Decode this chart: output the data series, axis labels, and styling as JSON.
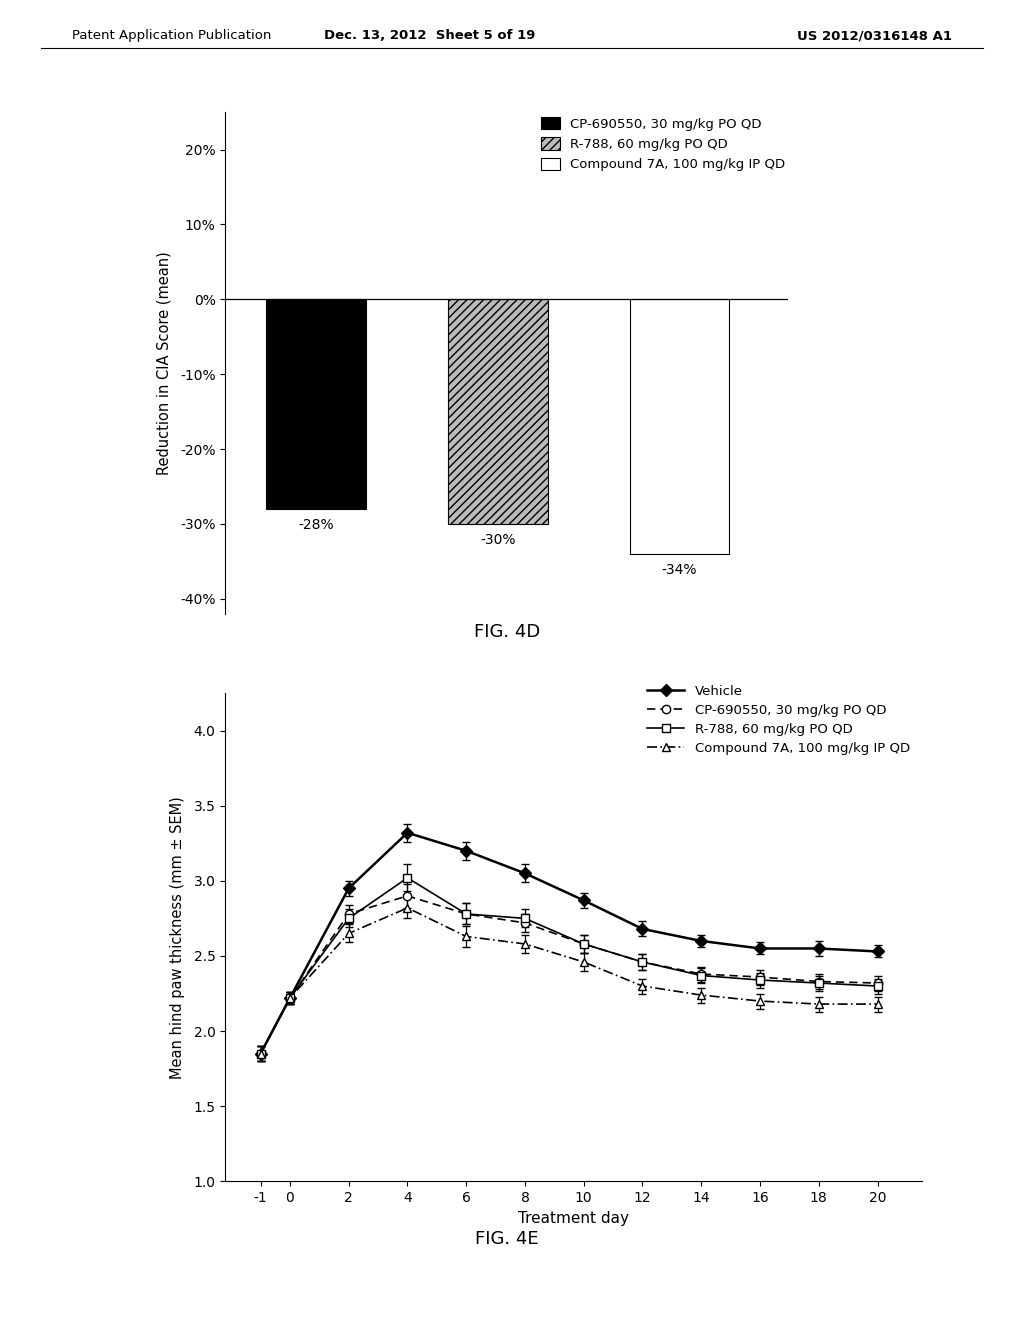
{
  "header_left": "Patent Application Publication",
  "header_center": "Dec. 13, 2012  Sheet 5 of 19",
  "header_right": "US 2012/0316148 A1",
  "fig4d": {
    "title": "FIG. 4D",
    "ylabel": "Reduction in CIA Score (mean)",
    "bar_values": [
      -28,
      -30,
      -34
    ],
    "bar_labels": [
      "-28%",
      "-30%",
      "-34%"
    ],
    "bar_colors": [
      "#000000",
      "#bbbbbb",
      "#ffffff"
    ],
    "bar_hatches": [
      null,
      "////",
      null
    ],
    "ylim": [
      -42,
      25
    ],
    "yticks": [
      -40,
      -30,
      -20,
      -10,
      0,
      10,
      20
    ],
    "ytick_labels": [
      "-40%",
      "-30%",
      "-20%",
      "-10%",
      "0%",
      "10%",
      "20%"
    ],
    "legend_items": [
      {
        "label": "CP-690550, 30 mg/kg PO QD",
        "facecolor": "#000000",
        "hatch": null
      },
      {
        "label": "R-788, 60 mg/kg PO QD",
        "facecolor": "#bbbbbb",
        "hatch": "////"
      },
      {
        "label": "Compound 7A, 100 mg/kg IP QD",
        "facecolor": "#ffffff",
        "hatch": null
      }
    ]
  },
  "fig4e": {
    "title": "FIG. 4E",
    "xlabel": "Treatment day",
    "ylabel": "Mean hind paw thickness (mm ± SEM)",
    "ylim": [
      1.0,
      4.25
    ],
    "yticks": [
      1.0,
      1.5,
      2.0,
      2.5,
      3.0,
      3.5,
      4.0
    ],
    "xticks": [
      -1,
      0,
      2,
      4,
      6,
      8,
      10,
      12,
      14,
      16,
      18,
      20
    ],
    "series": [
      {
        "label": "Vehicle",
        "x": [
          -1,
          0,
          2,
          4,
          6,
          8,
          10,
          12,
          14,
          16,
          18,
          20
        ],
        "y": [
          1.85,
          2.22,
          2.95,
          3.32,
          3.2,
          3.05,
          2.87,
          2.68,
          2.6,
          2.55,
          2.55,
          2.53
        ],
        "yerr": [
          0.05,
          0.04,
          0.05,
          0.06,
          0.06,
          0.06,
          0.05,
          0.05,
          0.04,
          0.04,
          0.05,
          0.04
        ],
        "linestyle": "-",
        "marker": "D",
        "mfc": "#000000",
        "lw": 1.8,
        "dashes": null
      },
      {
        "label": "CP-690550, 30 mg/kg PO QD",
        "x": [
          -1,
          0,
          2,
          4,
          6,
          8,
          10,
          12,
          14,
          16,
          18,
          20
        ],
        "y": [
          1.85,
          2.22,
          2.78,
          2.9,
          2.78,
          2.72,
          2.58,
          2.46,
          2.38,
          2.36,
          2.33,
          2.32
        ],
        "yerr": [
          0.05,
          0.04,
          0.06,
          0.08,
          0.07,
          0.06,
          0.06,
          0.05,
          0.05,
          0.05,
          0.05,
          0.05
        ],
        "linestyle": "--",
        "marker": "o",
        "mfc": "#ffffff",
        "lw": 1.2,
        "dashes": [
          5,
          3
        ]
      },
      {
        "label": "R-788, 60 mg/kg PO QD",
        "x": [
          -1,
          0,
          2,
          4,
          6,
          8,
          10,
          12,
          14,
          16,
          18,
          20
        ],
        "y": [
          1.85,
          2.22,
          2.75,
          3.02,
          2.78,
          2.75,
          2.58,
          2.46,
          2.37,
          2.34,
          2.32,
          2.3
        ],
        "yerr": [
          0.05,
          0.04,
          0.06,
          0.09,
          0.07,
          0.06,
          0.06,
          0.05,
          0.05,
          0.05,
          0.05,
          0.05
        ],
        "linestyle": "-",
        "marker": "s",
        "mfc": "#ffffff",
        "lw": 1.2,
        "dashes": null
      },
      {
        "label": "Compound 7A, 100 mg/kg IP QD",
        "x": [
          -1,
          0,
          2,
          4,
          6,
          8,
          10,
          12,
          14,
          16,
          18,
          20
        ],
        "y": [
          1.85,
          2.22,
          2.65,
          2.82,
          2.63,
          2.58,
          2.46,
          2.3,
          2.24,
          2.2,
          2.18,
          2.18
        ],
        "yerr": [
          0.05,
          0.04,
          0.06,
          0.07,
          0.07,
          0.06,
          0.06,
          0.05,
          0.05,
          0.05,
          0.05,
          0.05
        ],
        "linestyle": "-.",
        "marker": "^",
        "mfc": "#ffffff",
        "lw": 1.2,
        "dashes": [
          6,
          2,
          1,
          2
        ]
      }
    ]
  }
}
